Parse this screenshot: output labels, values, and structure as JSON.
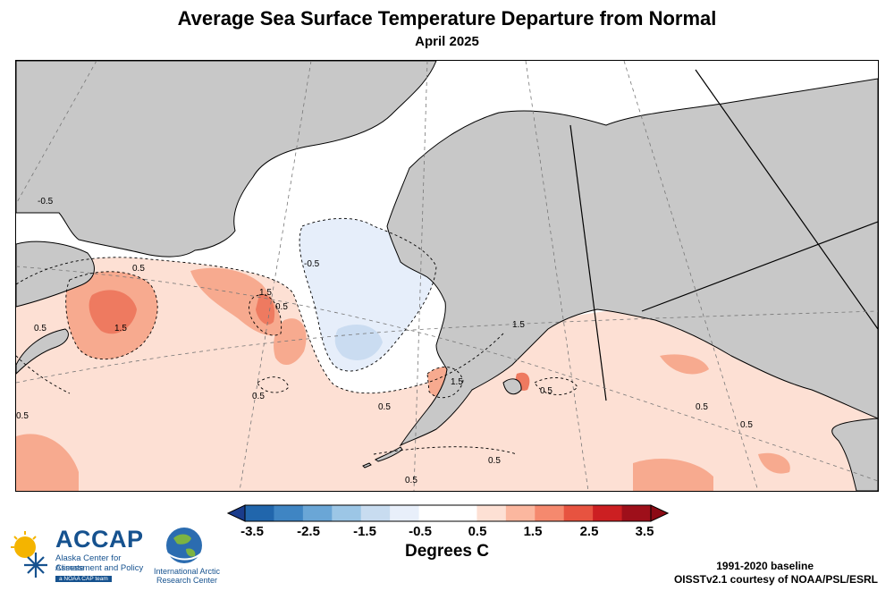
{
  "title": "Average Sea Surface Temperature Departure from Normal",
  "subtitle": "April 2025",
  "map": {
    "land_color": "#c8c8c8",
    "contour_labels": [
      "-0.5",
      "-0.5",
      "0.5",
      "1.5",
      "0.5",
      "0.5",
      "1.5",
      "1.5",
      "0.5",
      "0.5",
      "0.5",
      "0.5",
      "0.5",
      "1.5",
      "0.5",
      "0.5",
      "0.5"
    ]
  },
  "colorbar": {
    "colors": [
      "#2166ac",
      "#3f85c3",
      "#6aa6d6",
      "#9cc6e6",
      "#c8dcf0",
      "#e8effa",
      "#ffffff",
      "#ffffff",
      "#fde0d4",
      "#fbb79f",
      "#f5896e",
      "#e75340",
      "#cc1f22",
      "#9e0f1a"
    ],
    "tick_labels": [
      "-3.5",
      "-2.5",
      "-1.5",
      "-0.5",
      "0.5",
      "1.5",
      "2.5",
      "3.5"
    ],
    "units": "Degrees C"
  },
  "logos": {
    "accap_title": "ACCAP",
    "accap_line1": "Alaska Center for Climate",
    "accap_line2": "Assessment and Policy",
    "accap_tag": "a NOAA CAP team",
    "iarc_line1": "International Arctic",
    "iarc_line2": "Research Center"
  },
  "credits": {
    "baseline": "1991-2020 baseline",
    "source": "OISSTv2.1 courtesy of NOAA/PSL/ESRL"
  }
}
